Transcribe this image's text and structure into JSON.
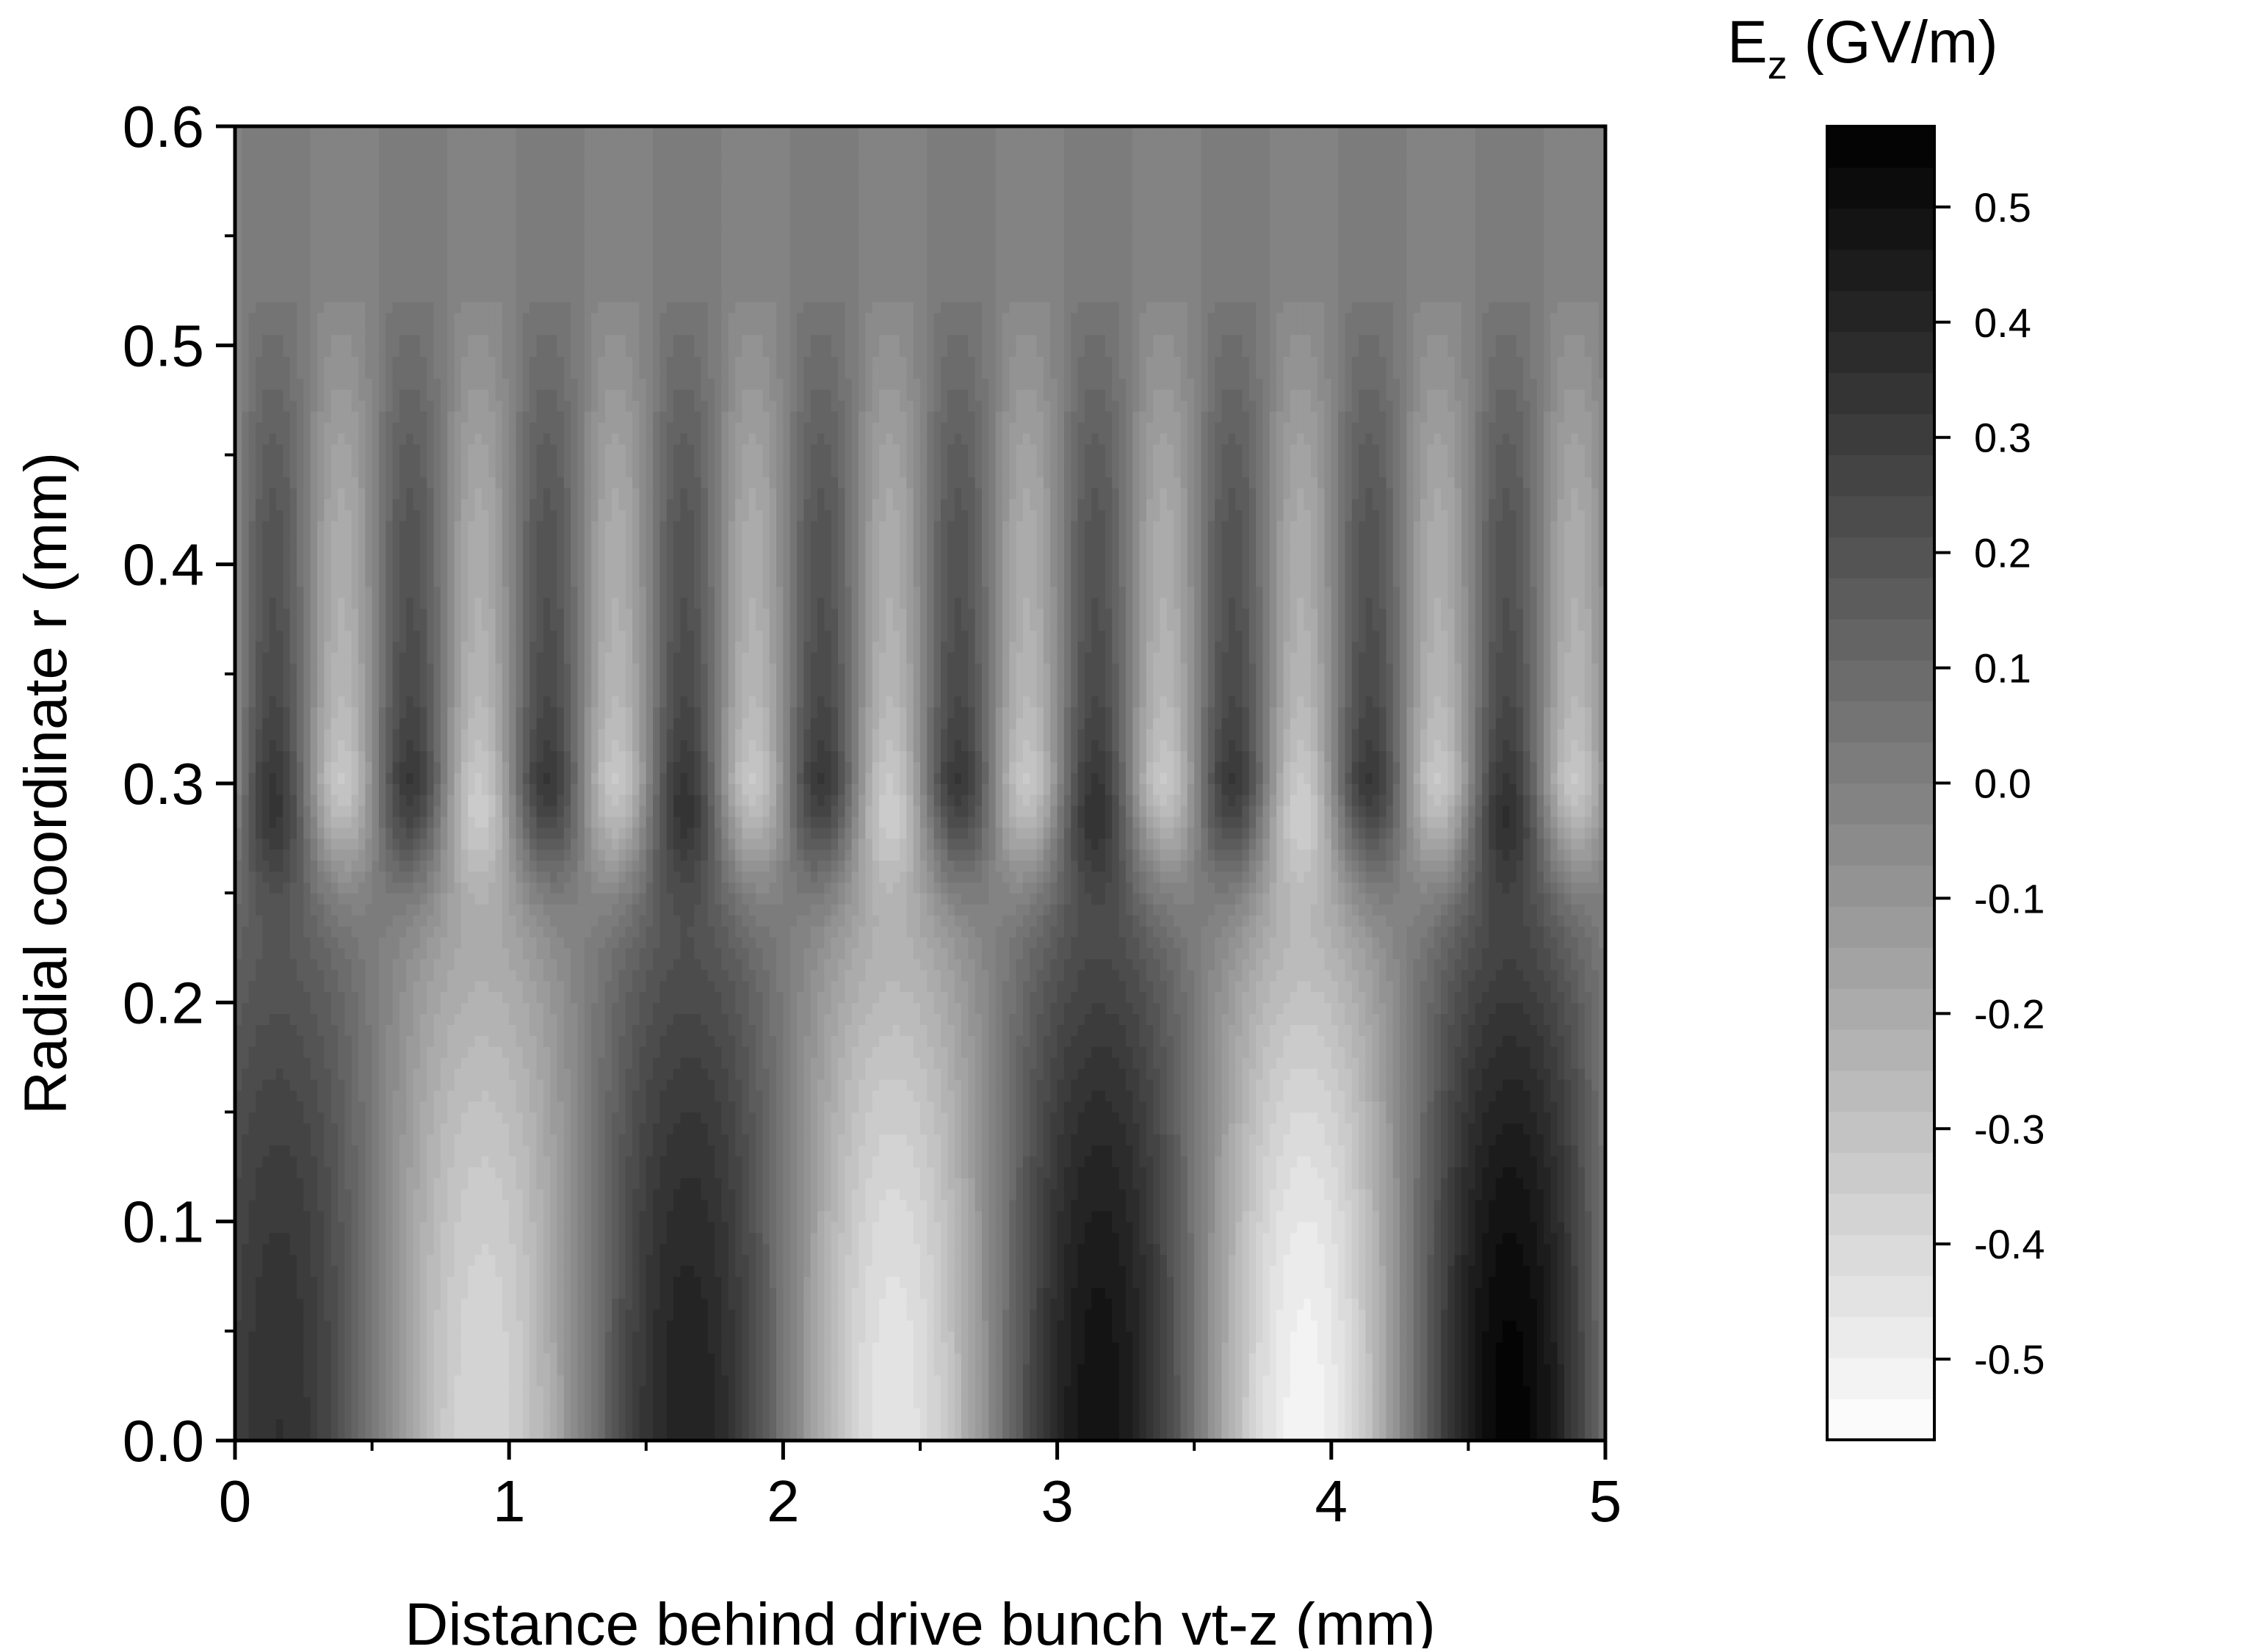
{
  "chart_data": {
    "type": "heatmap",
    "title": "",
    "xlabel": "Distance behind drive bunch vt-z (mm)",
    "ylabel": "Radial coordinate r (mm)",
    "xlim": [
      0,
      5
    ],
    "ylim": [
      0,
      0.6
    ],
    "x_ticks": [
      "0",
      "1",
      "2",
      "3",
      "4",
      "5"
    ],
    "x_tick_values": [
      0,
      1,
      2,
      3,
      4,
      5
    ],
    "y_ticks": [
      "0.0",
      "0.1",
      "0.2",
      "0.3",
      "0.4",
      "0.5",
      "0.6"
    ],
    "y_tick_values": [
      0.0,
      0.1,
      0.2,
      0.3,
      0.4,
      0.5,
      0.6
    ],
    "colorbar": {
      "label_main": "E",
      "label_sub": "z",
      "label_unit": " (GV/m)",
      "min": -0.57,
      "max": 0.57,
      "levels": 32,
      "ticks": [
        "0.5",
        "0.4",
        "0.3",
        "0.2",
        "0.1",
        "0.0",
        "-0.1",
        "-0.2",
        "-0.3",
        "-0.4",
        "-0.5"
      ],
      "tick_values": [
        0.5,
        0.4,
        0.3,
        0.2,
        0.1,
        0.0,
        -0.1,
        -0.2,
        -0.3,
        -0.4,
        -0.5
      ],
      "colormap": [
        "#ffffff",
        "#000000"
      ]
    },
    "field": {
      "description_model": "on-axis Ez oscillation with slowly growing amplitude, confined for r < 0.3 mm, with surface mode near r = 0.3 mm",
      "on_axis_period_mm": 1.5,
      "surface_period_mm": 0.5,
      "core_radius_mm": 0.3,
      "on_axis_peaks_positive_mm": [
        0.15,
        1.65,
        3.15,
        4.65
      ],
      "on_axis_peaks_negative_mm": [
        0.9,
        2.4,
        3.9
      ],
      "on_axis_amplitude_start": 0.35,
      "on_axis_amplitude_end": 0.57,
      "surface_amplitude": 0.32,
      "outer_decay_mm": 0.08
    }
  }
}
